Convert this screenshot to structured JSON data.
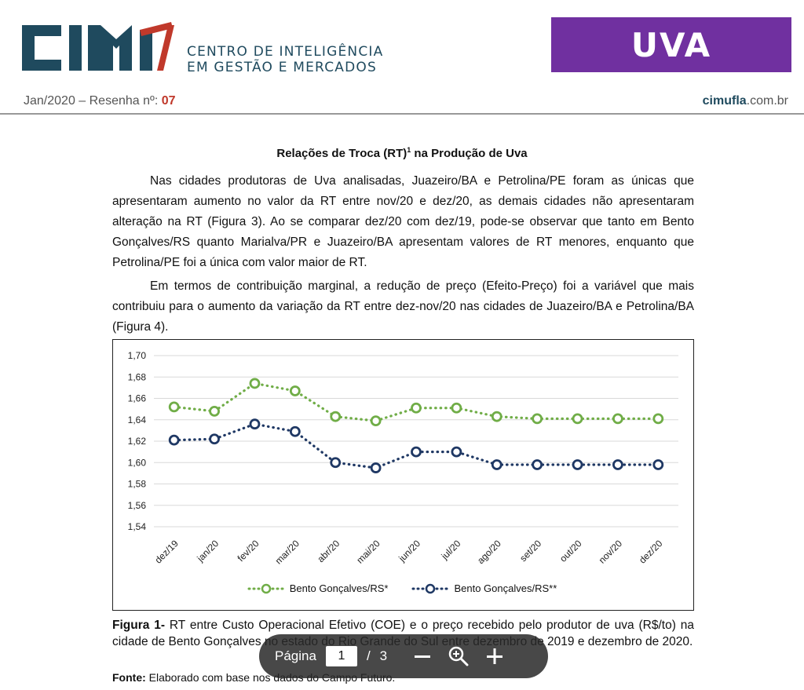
{
  "header": {
    "logo_lines": [
      "CENTRO DE INTELIGÊNCIA",
      "EM GESTÃO E MERCADOS"
    ],
    "badge": "UVA",
    "date_prefix": "Jan/2020 – Resenha nº:",
    "issue_number": "07",
    "site_bold": "cimufla",
    "site_rest": ".com.br",
    "colors": {
      "brand_dark": "#1f4a5e",
      "brand_red": "#c0392b",
      "badge_purple": "#7030a0"
    }
  },
  "article": {
    "title": "Relações de Troca (RT)",
    "title_sup": "1",
    "title_rest": " na Produção de Uva",
    "paragraphs": [
      "Nas cidades produtoras de Uva analisadas, Juazeiro/BA e Petrolina/PE foram as únicas que apresentaram aumento no valor da RT entre nov/20 e dez/20, as demais cidades não apresentaram alteração na RT (Figura 3). Ao se comparar dez/20 com dez/19, pode-se observar que tanto em Bento Gonçalves/RS quanto Marialva/PR e Juazeiro/BA apresentam valores de RT menores, enquanto que Petrolina/PE foi a única com valor maior de RT.",
      "Em termos de contribuição marginal, a redução de preço (Efeito-Preço) foi a variável que mais contribuiu para o aumento da variação da RT entre dez-nov/20 nas cidades de Juazeiro/BA e Petrolina/BA (Figura 4)."
    ],
    "caption_label": "Figura 1-",
    "caption_text": " RT entre Custo Operacional Efetivo (COE) e o preço recebido pelo produtor de uva (R$/to) na cidade de Bento Gonçalves no estado do Rio Grande do Sul entre dezembro de 2019 e dezembro de 2020.",
    "source_label": "Fonte:",
    "source_text": " Elaborado com base nos dados do Campo Futuro."
  },
  "chart_data": {
    "type": "line",
    "categories": [
      "dez/19",
      "jan/20",
      "fev/20",
      "mar/20",
      "abr/20",
      "mai/20",
      "jun/20",
      "jul/20",
      "ago/20",
      "set/20",
      "out/20",
      "nov/20",
      "dez/20"
    ],
    "y_ticks": [
      "1,70",
      "1,68",
      "1,66",
      "1,64",
      "1,62",
      "1,60",
      "1,58",
      "1,56",
      "1,54"
    ],
    "ylim": [
      1.54,
      1.7
    ],
    "grid": true,
    "legend_position": "bottom",
    "series": [
      {
        "name": "Bento Gonçalves/RS*",
        "color": "#70ad47",
        "values": [
          1.652,
          1.648,
          1.674,
          1.667,
          1.643,
          1.639,
          1.651,
          1.651,
          1.643,
          1.641,
          1.641,
          1.641,
          1.641
        ]
      },
      {
        "name": "Bento Gonçalves/RS**",
        "color": "#1f3864",
        "values": [
          1.621,
          1.622,
          1.636,
          1.629,
          1.6,
          1.595,
          1.61,
          1.61,
          1.598,
          1.598,
          1.598,
          1.598,
          1.598
        ]
      }
    ]
  },
  "toolbar": {
    "page_label": "Página",
    "current_page": "1",
    "separator": "/",
    "total_pages": "3"
  }
}
